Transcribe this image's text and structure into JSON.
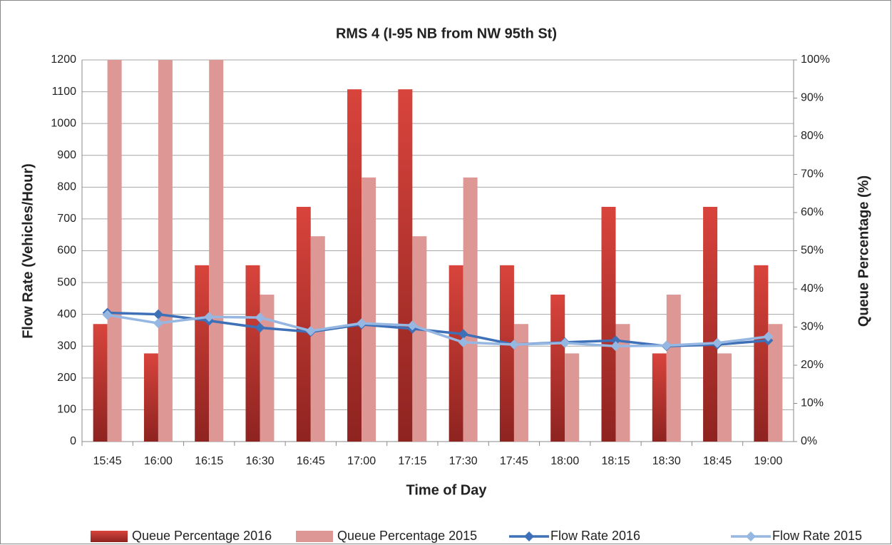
{
  "chart_data": {
    "type": "bar+line",
    "title": "RMS 4 (I-95 NB from NW 95th St)",
    "x_label": "Time of Day",
    "y_label": "Flow Rate (Vehicles/Hour)",
    "y2_label": "Queue Percentage (%)",
    "categories": [
      "15:45",
      "16:00",
      "16:15",
      "16:30",
      "16:45",
      "17:00",
      "17:15",
      "17:30",
      "17:45",
      "18:00",
      "18:15",
      "18:30",
      "18:45",
      "19:00"
    ],
    "series": [
      {
        "name": "Queue Percentage 2016",
        "type": "bar",
        "axis": "y2",
        "color": "#c0302b",
        "values": [
          30.8,
          23.1,
          46.2,
          46.2,
          61.5,
          92.3,
          92.3,
          46.2,
          46.2,
          38.5,
          61.5,
          23.1,
          61.5,
          46.2
        ]
      },
      {
        "name": "Queue Percentage 2015",
        "type": "bar",
        "axis": "y2",
        "color": "#dd9896",
        "values": [
          100,
          100,
          100,
          38.5,
          53.8,
          69.2,
          53.8,
          69.2,
          30.8,
          23.1,
          30.8,
          38.5,
          23.1,
          30.8
        ]
      },
      {
        "name": "Flow Rate 2016",
        "type": "line",
        "color": "#3e70b8",
        "values": [
          405,
          400,
          380,
          358,
          345,
          368,
          355,
          338,
          305,
          312,
          318,
          300,
          305,
          318
        ]
      },
      {
        "name": "Flow Rate 2015",
        "type": "line",
        "color": "#95b7e2",
        "values": [
          398,
          372,
          392,
          390,
          348,
          372,
          365,
          312,
          305,
          310,
          300,
          302,
          310,
          330
        ]
      }
    ],
    "ylim": [
      0,
      1200
    ],
    "yticks": [
      0,
      100,
      200,
      300,
      400,
      500,
      600,
      700,
      800,
      900,
      1000,
      1100,
      1200
    ],
    "y2lim": [
      0,
      100
    ],
    "y2ticks": [
      {
        "value": 0,
        "label": "0%"
      },
      {
        "value": 10,
        "label": "10%"
      },
      {
        "value": 20,
        "label": "20%"
      },
      {
        "value": 30,
        "label": "30%"
      },
      {
        "value": 40,
        "label": "40%"
      },
      {
        "value": 50,
        "label": "50%"
      },
      {
        "value": 60,
        "label": "60%"
      },
      {
        "value": 70,
        "label": "70%"
      },
      {
        "value": 80,
        "label": "80%"
      },
      {
        "value": 90,
        "label": "90%"
      },
      {
        "value": 100,
        "label": "100%"
      }
    ],
    "grid": true,
    "legend": "bottom"
  }
}
